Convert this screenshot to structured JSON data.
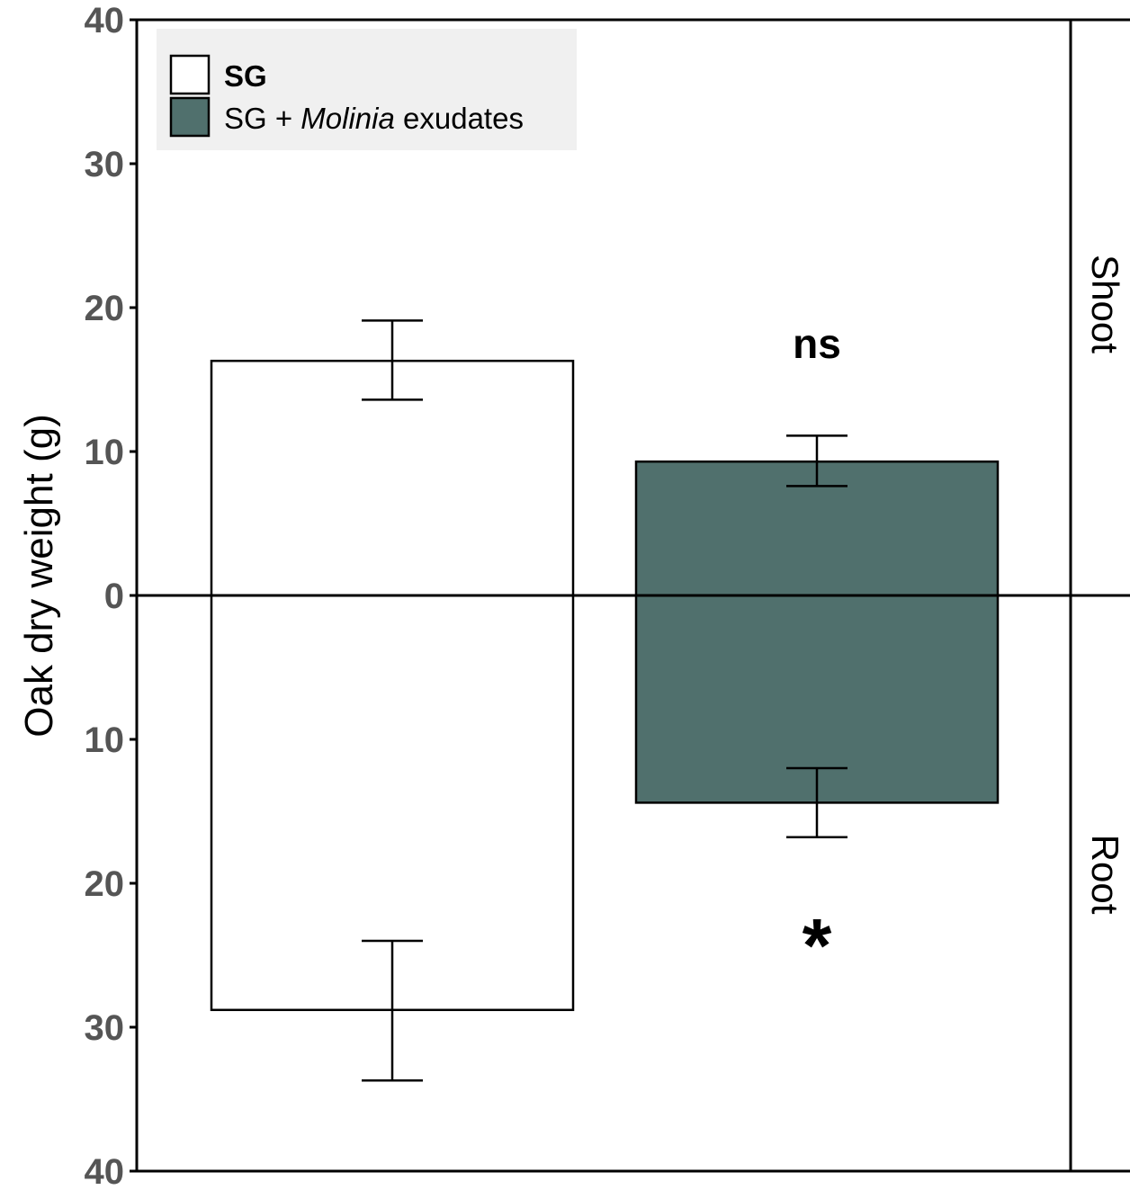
{
  "chart_data": {
    "type": "bar",
    "ylabel": "Oak dry weight (g)",
    "ylim": [
      -40,
      40
    ],
    "y_ticks": [
      40,
      30,
      20,
      10,
      0,
      -10,
      -20,
      -30,
      -40
    ],
    "y_tick_labels": [
      "40",
      "30",
      "20",
      "10",
      "0",
      "10",
      "20",
      "30",
      "40"
    ],
    "facets": [
      "Shoot",
      "Root"
    ],
    "categories": [
      "SG",
      "SG + Molinia exudates"
    ],
    "legend": {
      "position": "top-left",
      "entries": [
        {
          "label": "SG",
          "color": "#ffffff"
        },
        {
          "label_prefix": "SG + ",
          "label_italic": "Molinia",
          "label_suffix": " exudates",
          "color": "#50706d"
        }
      ]
    },
    "series": [
      {
        "name": "SG",
        "color": "#ffffff",
        "shoot": 16.3,
        "shoot_err": [
          13.6,
          19.1
        ],
        "root": 28.8,
        "root_err": [
          24.0,
          33.7
        ]
      },
      {
        "name": "SG + Molinia exudates",
        "color": "#50706d",
        "shoot": 9.3,
        "shoot_err": [
          7.6,
          11.1
        ],
        "root": 14.4,
        "root_err": [
          12.0,
          16.8
        ]
      }
    ],
    "significance": {
      "shoot": "ns",
      "root": "*"
    },
    "grid": false
  }
}
